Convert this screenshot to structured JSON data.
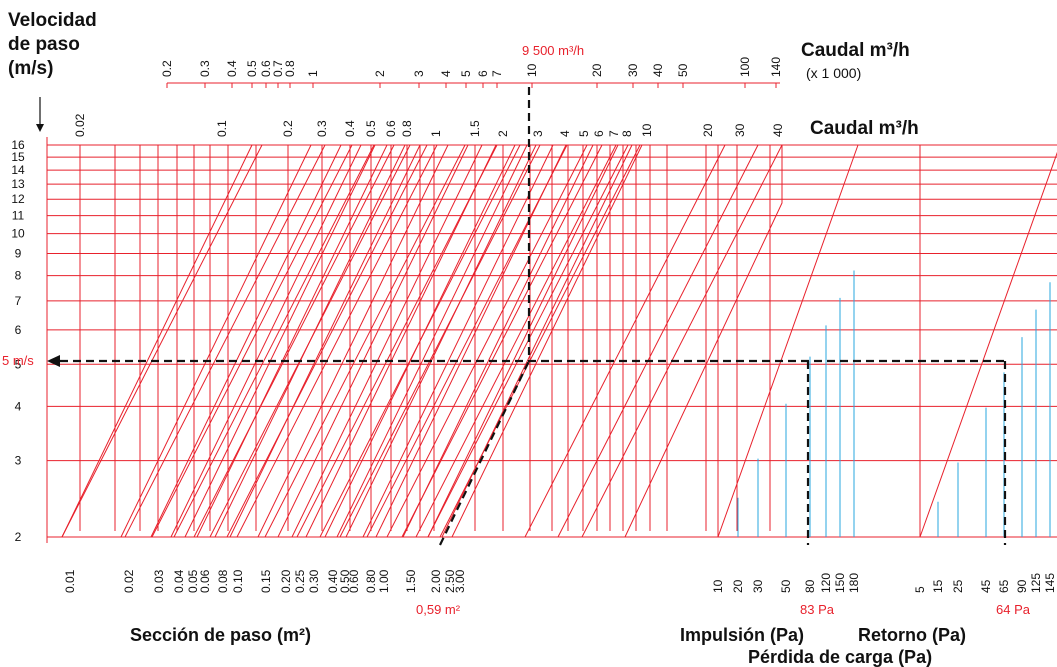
{
  "colors": {
    "red": "#e8212c",
    "blue": "#2aa7df",
    "black": "#111111"
  },
  "texts": {
    "velocity_title_1": "Velocidad",
    "velocity_title_2": "de paso",
    "velocity_title_3": "(m/s)",
    "top_title": "Caudal m³/h",
    "top_subtitle": "(x 1 000)",
    "upper_caudal_title": "Caudal m³/h",
    "section_title": "Sección de paso (m²)",
    "impulsion_title": "Impulsión (Pa)",
    "retorno_title": "Retorno (Pa)",
    "perdida_title": "Pérdida de carga (Pa)",
    "flow_annotation": "9 500 m³/h",
    "section_annotation": "0,59 m²",
    "velocity_annotation": "5 m/s",
    "impulsion_annotation": "83 Pa",
    "retorno_annotation": "64 Pa"
  },
  "chart_data": {
    "type": "nomogram",
    "velocity_ticks": [
      "2",
      "3",
      "4",
      "5",
      "6",
      "7",
      "8",
      "9",
      "10",
      "11",
      "12",
      "13",
      "14",
      "15",
      "16"
    ],
    "top_flow_ticks": [
      "0.2",
      "0.3",
      "0.4",
      "0.5",
      "0.6",
      "0.7",
      "0.8",
      "1",
      "2",
      "3",
      "4",
      "5",
      "6",
      "7",
      "10",
      "20",
      "30",
      "40",
      "50",
      "100",
      "140"
    ],
    "upper_flow_labels": [
      "0.02",
      "0.1",
      "0.2",
      "0.3",
      "0.4",
      "0.5",
      "0.6",
      "0.8",
      "1",
      "1.5",
      "2",
      "3",
      "4",
      "5",
      "6",
      "7",
      "8",
      "10",
      "20",
      "30",
      "40"
    ],
    "section_ticks": [
      "0.01",
      "0.02",
      "0.03",
      "0.04",
      "0.05",
      "0.06",
      "0.08",
      "0.10",
      "0.15",
      "0.20",
      "0.25",
      "0.30",
      "0.40",
      "0.50",
      "0.60",
      "0.80",
      "1.00",
      "1.50",
      "2.00",
      "2.50",
      "3.00"
    ],
    "impulsion_ticks": [
      "10",
      "20",
      "30",
      "50",
      "80",
      "120",
      "150",
      "180"
    ],
    "retorno_ticks": [
      "5",
      "15",
      "25",
      "45",
      "65",
      "90",
      "125",
      "145"
    ],
    "example": {
      "flow_m3h": 9500,
      "velocity_ms": 5,
      "section_m2": 0.59,
      "impulsion_pa": 83,
      "retorno_pa": 64
    }
  }
}
